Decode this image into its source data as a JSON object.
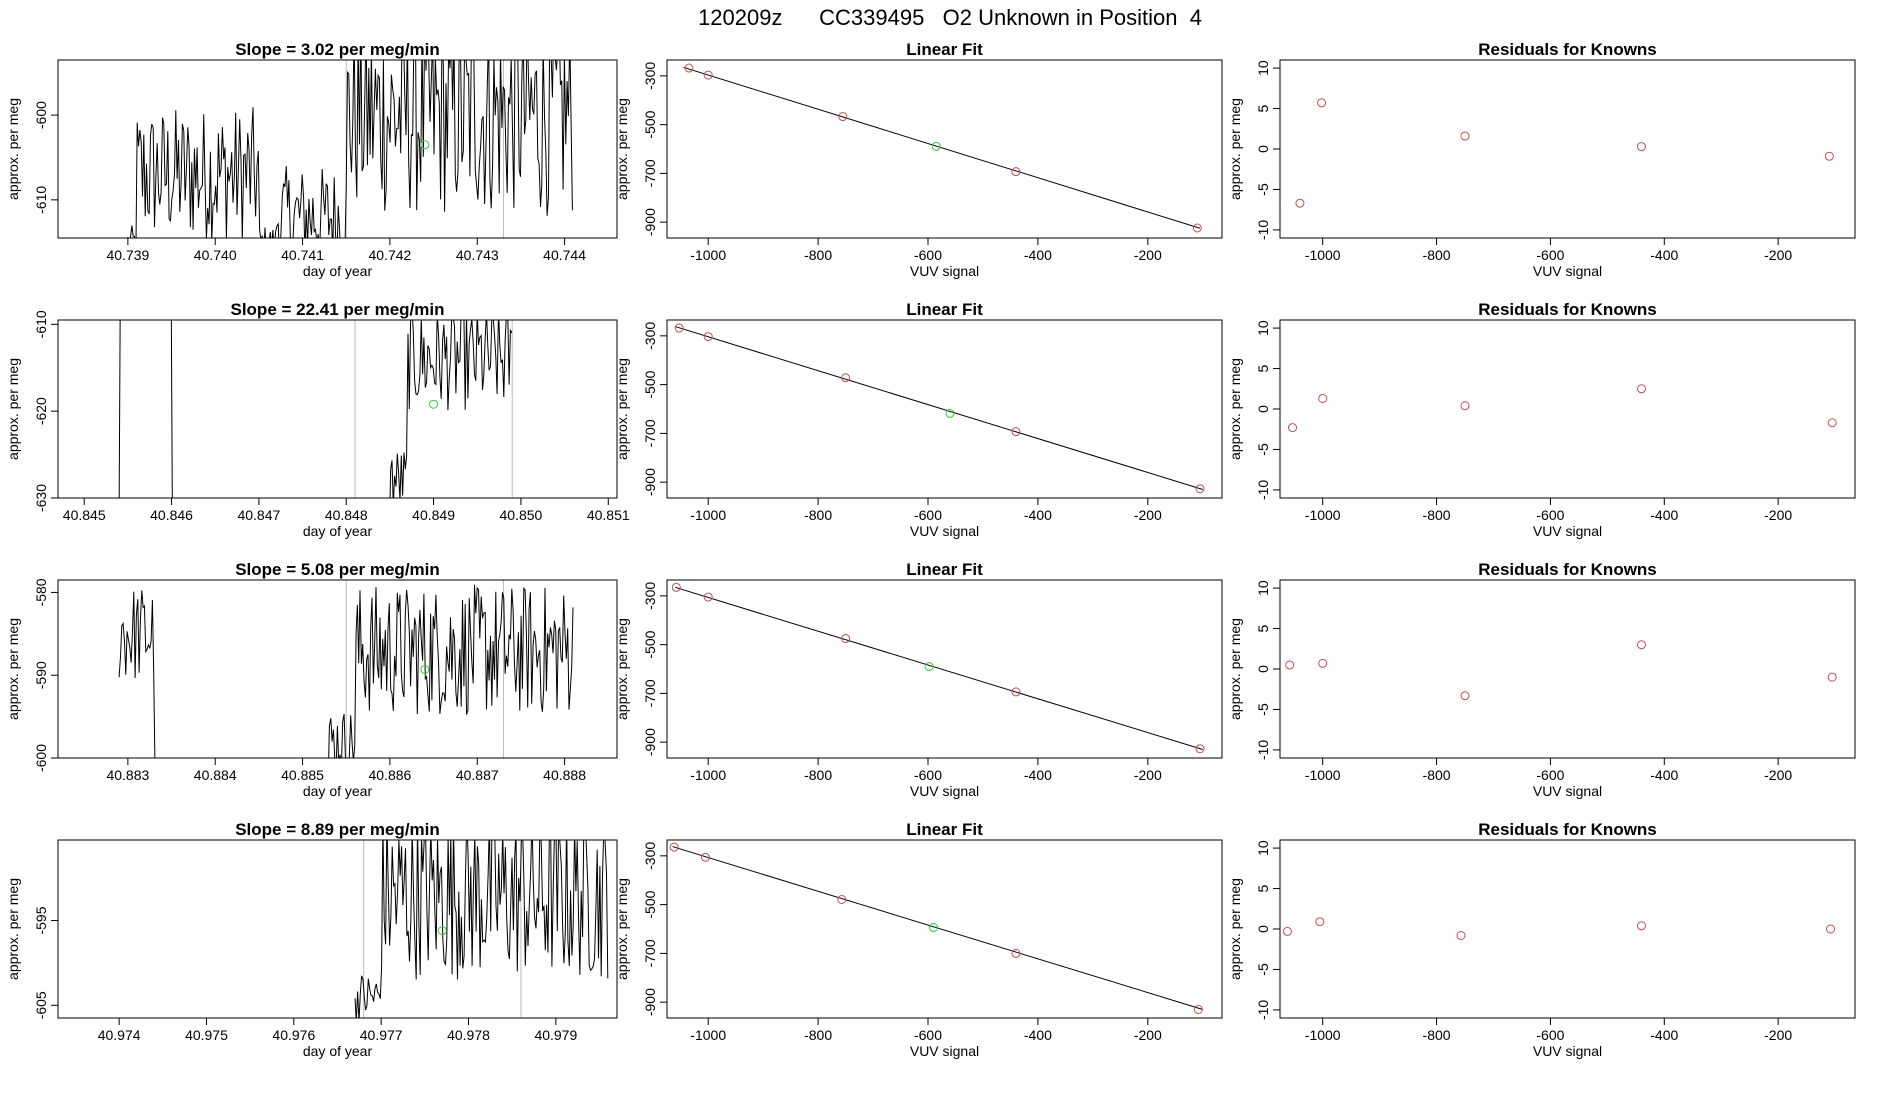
{
  "page_title": "120209z      CC339495   O2 Unknown in Position  4",
  "chart_data": [
    {
      "panel": "timeseries-1",
      "type": "line",
      "title": "Slope =  3.02  per meg/min",
      "xlabel": "day of year",
      "ylabel": "approx. per meg",
      "xlim": [
        40.7382,
        40.7446
      ],
      "ylim": [
        -614.5,
        -593.5
      ],
      "xticks": [
        40.739,
        40.74,
        40.741,
        40.742,
        40.743,
        40.744
      ],
      "xtick_labels": [
        "40.739",
        "40.740",
        "40.741",
        "40.742",
        "40.743",
        "40.744"
      ],
      "yticks": [
        -600,
        -610
      ],
      "ytick_labels": [
        "-600",
        "-610"
      ],
      "vlines": [
        40.7415,
        40.7433
      ],
      "marker": {
        "x": 40.7424,
        "y": -603.5
      },
      "series_start": 40.739,
      "series_end": 40.7441,
      "regions": [
        {
          "from": 40.739,
          "to": 40.7391,
          "base": -615,
          "amp": 2
        },
        {
          "from": 40.7391,
          "to": 40.7405,
          "base": -607,
          "amp": 8
        },
        {
          "from": 40.7405,
          "to": 40.7407,
          "base": -615,
          "amp": 2
        },
        {
          "from": 40.7407,
          "to": 40.7415,
          "base": -612,
          "amp": 6
        },
        {
          "from": 40.7415,
          "to": 40.7441,
          "base": -600,
          "amp": 12
        }
      ]
    },
    {
      "panel": "fit-1",
      "type": "scatter",
      "title": "Linear Fit",
      "xlabel": "VUV signal",
      "ylabel": "approx. per meg",
      "xlim": [
        -1075,
        -65
      ],
      "ylim": [
        -965,
        -235
      ],
      "xticks": [
        -1000,
        -800,
        -600,
        -400,
        -200
      ],
      "xtick_labels": [
        "-1000",
        "-800",
        "-600",
        "-400",
        "-200"
      ],
      "yticks": [
        -300,
        -500,
        -700,
        -900
      ],
      "ytick_labels": [
        "-300",
        "-500",
        "-700",
        "-900"
      ],
      "fit_line": [
        [
          -1045,
          -265
        ],
        [
          -105,
          -925
        ]
      ],
      "knowns": [
        [
          -1035,
          -268
        ],
        [
          -1000,
          -297
        ],
        [
          -755,
          -467
        ],
        [
          -440,
          -693
        ],
        [
          -110,
          -924
        ]
      ],
      "unknown": [
        -585,
        -589
      ]
    },
    {
      "panel": "resid-1",
      "type": "scatter",
      "title": "Residuals for Knowns",
      "xlabel": "VUV signal",
      "ylabel": "approx. per meg",
      "xlim": [
        -1075,
        -65
      ],
      "ylim": [
        -11,
        11
      ],
      "xticks": [
        -1000,
        -800,
        -600,
        -400,
        -200
      ],
      "xtick_labels": [
        "-1000",
        "-800",
        "-600",
        "-400",
        "-200"
      ],
      "yticks": [
        10,
        5,
        0,
        -5,
        -10
      ],
      "ytick_labels": [
        "10",
        "5",
        "0",
        "-5",
        "-10"
      ],
      "points": [
        [
          -1040,
          -6.7
        ],
        [
          -1002,
          5.7
        ],
        [
          -750,
          1.6
        ],
        [
          -440,
          0.3
        ],
        [
          -110,
          -0.9
        ]
      ]
    },
    {
      "panel": "timeseries-2",
      "type": "line",
      "title": "Slope =  22.41  per meg/min",
      "xlabel": "day of year",
      "ylabel": "approx. per meg",
      "xlim": [
        40.8447,
        40.8511
      ],
      "ylim": [
        -630,
        -609.5
      ],
      "xticks": [
        40.845,
        40.846,
        40.847,
        40.848,
        40.849,
        40.85,
        40.851
      ],
      "xtick_labels": [
        "40.845",
        "40.846",
        "40.847",
        "40.848",
        "40.849",
        "40.850",
        "40.851"
      ],
      "yticks": [
        -610,
        -620,
        -630
      ],
      "ytick_labels": [
        "-610",
        "-620",
        "-630"
      ],
      "vlines": [
        40.8481,
        40.8499
      ],
      "marker": {
        "x": 40.849,
        "y": -619.2
      },
      "series_start": 40.8454,
      "series_end": 40.8499,
      "regions": [
        {
          "from": 40.8454,
          "to": 40.8454,
          "base": -632,
          "amp": 0
        },
        {
          "from": 40.8454,
          "to": 40.846,
          "base": -600,
          "amp": 2
        },
        {
          "from": 40.846,
          "to": 40.8485,
          "base": -633,
          "amp": 1
        },
        {
          "from": 40.8485,
          "to": 40.8487,
          "base": -628,
          "amp": 4
        },
        {
          "from": 40.8487,
          "to": 40.8499,
          "base": -614,
          "amp": 6
        }
      ]
    },
    {
      "panel": "fit-2",
      "type": "scatter",
      "title": "Linear Fit",
      "xlabel": "VUV signal",
      "ylabel": "approx. per meg",
      "xlim": [
        -1075,
        -65
      ],
      "ylim": [
        -965,
        -235
      ],
      "xticks": [
        -1000,
        -800,
        -600,
        -400,
        -200
      ],
      "xtick_labels": [
        "-1000",
        "-800",
        "-600",
        "-400",
        "-200"
      ],
      "yticks": [
        -300,
        -500,
        -700,
        -900
      ],
      "ytick_labels": [
        "-300",
        "-500",
        "-700",
        "-900"
      ],
      "fit_line": [
        [
          -1060,
          -262
        ],
        [
          -100,
          -930
        ]
      ],
      "knowns": [
        [
          -1053,
          -268
        ],
        [
          -1000,
          -303
        ],
        [
          -750,
          -472
        ],
        [
          -440,
          -693
        ],
        [
          -105,
          -927
        ]
      ],
      "unknown": [
        -560,
        -618
      ]
    },
    {
      "panel": "resid-2",
      "type": "scatter",
      "title": "Residuals for Knowns",
      "xlabel": "VUV signal",
      "ylabel": "approx. per meg",
      "xlim": [
        -1075,
        -65
      ],
      "ylim": [
        -11,
        11
      ],
      "xticks": [
        -1000,
        -800,
        -600,
        -400,
        -200
      ],
      "xtick_labels": [
        "-1000",
        "-800",
        "-600",
        "-400",
        "-200"
      ],
      "yticks": [
        10,
        5,
        0,
        -5,
        -10
      ],
      "ytick_labels": [
        "10",
        "5",
        "0",
        "-5",
        "-10"
      ],
      "points": [
        [
          -1053,
          -2.3
        ],
        [
          -1000,
          1.3
        ],
        [
          -750,
          0.4
        ],
        [
          -440,
          2.5
        ],
        [
          -105,
          -1.7
        ]
      ]
    },
    {
      "panel": "timeseries-3",
      "type": "line",
      "title": "Slope =  5.08  per meg/min",
      "xlabel": "day of year",
      "ylabel": "approx. per meg",
      "xlim": [
        40.8822,
        40.8886
      ],
      "ylim": [
        -600,
        -578.5
      ],
      "xticks": [
        40.883,
        40.884,
        40.885,
        40.886,
        40.887,
        40.888
      ],
      "xtick_labels": [
        "40.883",
        "40.884",
        "40.885",
        "40.886",
        "40.887",
        "40.888"
      ],
      "yticks": [
        -580,
        -590,
        -600
      ],
      "ytick_labels": [
        "-580",
        "-590",
        "-600"
      ],
      "vlines": [
        40.8855,
        40.8873
      ],
      "marker": {
        "x": 40.8864,
        "y": -589.3
      },
      "series_start": 40.8829,
      "series_end": 40.8881,
      "regions": [
        {
          "from": 40.8829,
          "to": 40.8833,
          "base": -585,
          "amp": 6
        },
        {
          "from": 40.8833,
          "to": 40.8853,
          "base": -603,
          "amp": 1
        },
        {
          "from": 40.8853,
          "to": 40.8856,
          "base": -598,
          "amp": 4
        },
        {
          "from": 40.8856,
          "to": 40.8881,
          "base": -587,
          "amp": 8
        }
      ]
    },
    {
      "panel": "fit-3",
      "type": "scatter",
      "title": "Linear Fit",
      "xlabel": "VUV signal",
      "ylabel": "approx. per meg",
      "xlim": [
        -1075,
        -65
      ],
      "ylim": [
        -965,
        -235
      ],
      "xticks": [
        -1000,
        -800,
        -600,
        -400,
        -200
      ],
      "xtick_labels": [
        "-1000",
        "-800",
        "-600",
        "-400",
        "-200"
      ],
      "yticks": [
        -300,
        -500,
        -700,
        -900
      ],
      "ytick_labels": [
        "-300",
        "-500",
        "-700",
        "-900"
      ],
      "fit_line": [
        [
          -1060,
          -265
        ],
        [
          -100,
          -930
        ]
      ],
      "knowns": [
        [
          -1058,
          -265
        ],
        [
          -1000,
          -305
        ],
        [
          -750,
          -475
        ],
        [
          -440,
          -694
        ],
        [
          -105,
          -927
        ]
      ],
      "unknown": [
        -598,
        -590
      ]
    },
    {
      "panel": "resid-3",
      "type": "scatter",
      "title": "Residuals for Knowns",
      "xlabel": "VUV signal",
      "ylabel": "approx. per meg",
      "xlim": [
        -1075,
        -65
      ],
      "ylim": [
        -11,
        11
      ],
      "xticks": [
        -1000,
        -800,
        -600,
        -400,
        -200
      ],
      "xtick_labels": [
        "-1000",
        "-800",
        "-600",
        "-400",
        "-200"
      ],
      "yticks": [
        10,
        5,
        0,
        -5,
        -10
      ],
      "ytick_labels": [
        "10",
        "5",
        "0",
        "-5",
        "-10"
      ],
      "points": [
        [
          -1058,
          0.5
        ],
        [
          -1000,
          0.7
        ],
        [
          -750,
          -3.3
        ],
        [
          -440,
          3.0
        ],
        [
          -105,
          -1.0
        ]
      ]
    },
    {
      "panel": "timeseries-4",
      "type": "line",
      "title": "Slope =  8.89  per meg/min",
      "xlabel": "day of year",
      "ylabel": "approx. per meg",
      "xlim": [
        40.9733,
        40.9797
      ],
      "ylim": [
        -606.5,
        -585.5
      ],
      "xticks": [
        40.974,
        40.975,
        40.976,
        40.977,
        40.978,
        40.979
      ],
      "xtick_labels": [
        "40.974",
        "40.975",
        "40.976",
        "40.977",
        "40.978",
        "40.979"
      ],
      "yticks": [
        -595,
        -605
      ],
      "ytick_labels": [
        "-595",
        "-605"
      ],
      "vlines": [
        40.9768,
        40.9786
      ],
      "marker": {
        "x": 40.9777,
        "y": -596.2
      },
      "series_start": 40.9767,
      "series_end": 40.9796,
      "regions": [
        {
          "from": 40.9767,
          "to": 40.977,
          "base": -604,
          "amp": 3
        },
        {
          "from": 40.977,
          "to": 40.9796,
          "base": -592,
          "amp": 10
        }
      ]
    },
    {
      "panel": "fit-4",
      "type": "scatter",
      "title": "Linear Fit",
      "xlabel": "VUV signal",
      "ylabel": "approx. per meg",
      "xlim": [
        -1075,
        -65
      ],
      "ylim": [
        -965,
        -235
      ],
      "xticks": [
        -1000,
        -800,
        -600,
        -400,
        -200
      ],
      "xtick_labels": [
        "-1000",
        "-800",
        "-600",
        "-400",
        "-200"
      ],
      "yticks": [
        -300,
        -500,
        -700,
        -900
      ],
      "ytick_labels": [
        "-300",
        "-500",
        "-700",
        "-900"
      ],
      "fit_line": [
        [
          -1065,
          -262
        ],
        [
          -100,
          -930
        ]
      ],
      "knowns": [
        [
          -1062,
          -264
        ],
        [
          -1005,
          -306
        ],
        [
          -757,
          -479
        ],
        [
          -440,
          -700
        ],
        [
          -108,
          -930
        ]
      ],
      "unknown": [
        -590,
        -594
      ]
    },
    {
      "panel": "resid-4",
      "type": "scatter",
      "title": "Residuals for Knowns",
      "xlabel": "VUV signal",
      "ylabel": "approx. per meg",
      "xlim": [
        -1075,
        -65
      ],
      "ylim": [
        -11,
        11
      ],
      "xticks": [
        -1000,
        -800,
        -600,
        -400,
        -200
      ],
      "xtick_labels": [
        "-1000",
        "-800",
        "-600",
        "-400",
        "-200"
      ],
      "yticks": [
        10,
        5,
        0,
        -5,
        -10
      ],
      "ytick_labels": [
        "10",
        "5",
        "0",
        "-5",
        "-10"
      ],
      "points": [
        [
          -1062,
          -0.3
        ],
        [
          -1005,
          0.9
        ],
        [
          -757,
          -0.8
        ],
        [
          -440,
          0.4
        ],
        [
          -108,
          0.0
        ]
      ]
    }
  ],
  "colors": {
    "known_points": "#c0504d",
    "unknown_point": "#33cc33",
    "lines": "#000000",
    "marker_lines": "#bbbbbb"
  }
}
